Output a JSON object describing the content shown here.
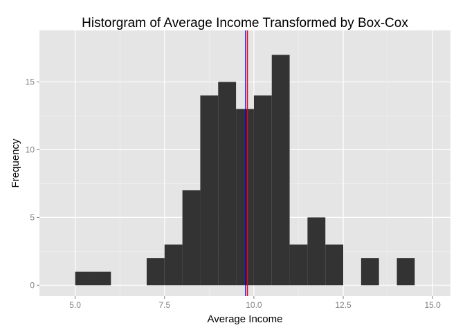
{
  "chart_data": {
    "type": "bar",
    "subtype": "histogram",
    "title": "Historgram of Average Income Transformed by Box-Cox",
    "xlabel": "Average Income",
    "ylabel": "Frequency",
    "xlim": [
      4.0,
      15.5
    ],
    "ylim": [
      -0.8,
      18.8
    ],
    "x_ticks": [
      5.0,
      7.5,
      10.0,
      12.5,
      15.0
    ],
    "x_tick_labels": [
      "5.0",
      "7.5",
      "10.0",
      "12.5",
      "15.0"
    ],
    "y_ticks": [
      0,
      5,
      10,
      15
    ],
    "y_tick_labels": [
      "0",
      "5",
      "10",
      "15"
    ],
    "bin_width": 0.5,
    "bins": [
      {
        "x0": 5.0,
        "x1": 5.5,
        "count": 1
      },
      {
        "x0": 5.5,
        "x1": 6.0,
        "count": 1
      },
      {
        "x0": 6.0,
        "x1": 6.5,
        "count": 0
      },
      {
        "x0": 6.5,
        "x1": 7.0,
        "count": 0
      },
      {
        "x0": 7.0,
        "x1": 7.5,
        "count": 2
      },
      {
        "x0": 7.5,
        "x1": 8.0,
        "count": 3
      },
      {
        "x0": 8.0,
        "x1": 8.5,
        "count": 7
      },
      {
        "x0": 8.5,
        "x1": 9.0,
        "count": 14
      },
      {
        "x0": 9.0,
        "x1": 9.5,
        "count": 15
      },
      {
        "x0": 9.5,
        "x1": 10.0,
        "count": 13
      },
      {
        "x0": 10.0,
        "x1": 10.5,
        "count": 14
      },
      {
        "x0": 10.5,
        "x1": 11.0,
        "count": 17
      },
      {
        "x0": 11.0,
        "x1": 11.5,
        "count": 3
      },
      {
        "x0": 11.5,
        "x1": 12.0,
        "count": 5
      },
      {
        "x0": 12.0,
        "x1": 12.5,
        "count": 3
      },
      {
        "x0": 12.5,
        "x1": 13.0,
        "count": 0
      },
      {
        "x0": 13.0,
        "x1": 13.5,
        "count": 2
      },
      {
        "x0": 13.5,
        "x1": 14.0,
        "count": 0
      },
      {
        "x0": 14.0,
        "x1": 14.5,
        "count": 2
      }
    ],
    "vlines": [
      {
        "x": 9.77,
        "color": "#0000ff"
      },
      {
        "x": 9.82,
        "color": "#ff0000"
      }
    ],
    "grid": true,
    "colors": {
      "panel": "#e5e5e5",
      "grid_major": "#ffffff",
      "grid_minor": "#f2f2f2",
      "bar": "#333333"
    }
  }
}
